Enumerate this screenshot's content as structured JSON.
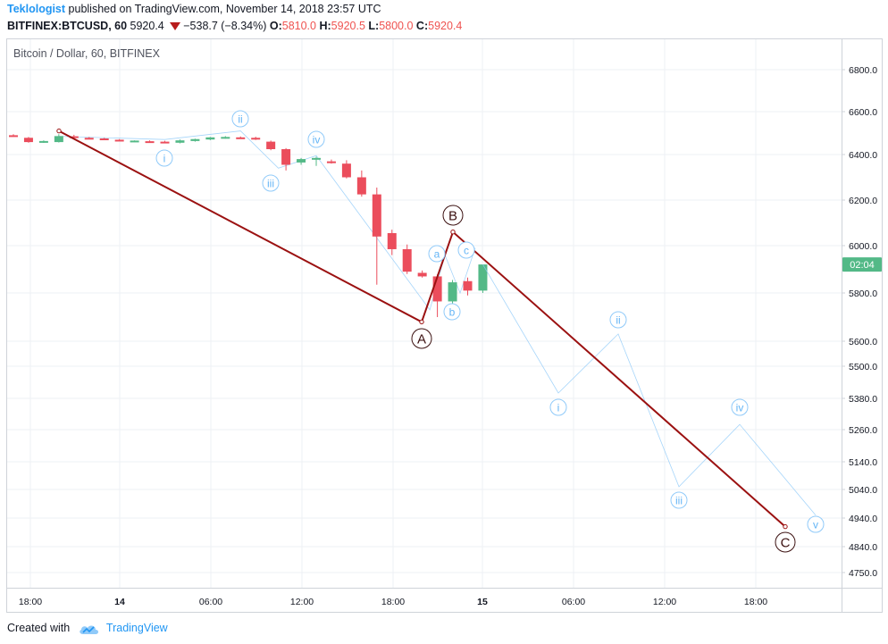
{
  "header": {
    "author": "Teklologist",
    "published_text": "published on TradingView.com, November 14, 2018 23:57 UTC",
    "symbol": "BITFINEX:BTCUSD, 60",
    "last": "5920.4",
    "change": "−538.7 (−8.34%)",
    "open_label": "O:",
    "open": "5810.0",
    "high_label": "H:",
    "high": "5920.5",
    "low_label": "L:",
    "low": "5800.0",
    "close_label": "C:",
    "close": "5920.4"
  },
  "chart_title": "Bitcoin / Dollar, 60, BITFINEX",
  "price_tag": "02:04",
  "footer": {
    "created_with": "Created with",
    "brand": "TradingView"
  },
  "colors": {
    "up": "#53b987",
    "down": "#eb4d5c",
    "main_wave": "#9b1111",
    "sub_wave": "#90caf9",
    "brand": "#2196f3"
  },
  "chart_data": {
    "type": "candlestick",
    "y_ticks": [
      "6800.0",
      "6600.0",
      "6400.0",
      "6200.0",
      "6000.0",
      "5800.0",
      "5600.0",
      "5500.0",
      "5380.0",
      "5260.0",
      "5140.0",
      "5040.0",
      "4940.0",
      "4840.0",
      "4750.0"
    ],
    "x_ticks": [
      "18:00",
      "14",
      "06:00",
      "12:00",
      "18:00",
      "15",
      "06:00",
      "12:00",
      "18:00"
    ],
    "candles": [
      {
        "o": 6490,
        "h": 6495,
        "l": 6485,
        "c": 6486
      },
      {
        "o": 6478,
        "h": 6482,
        "l": 6455,
        "c": 6458
      },
      {
        "o": 6460,
        "h": 6466,
        "l": 6454,
        "c": 6463
      },
      {
        "o": 6458,
        "h": 6495,
        "l": 6456,
        "c": 6486
      },
      {
        "o": 6485,
        "h": 6492,
        "l": 6478,
        "c": 6480
      },
      {
        "o": 6478,
        "h": 6482,
        "l": 6472,
        "c": 6475
      },
      {
        "o": 6475,
        "h": 6478,
        "l": 6470,
        "c": 6471
      },
      {
        "o": 6469,
        "h": 6472,
        "l": 6462,
        "c": 6464
      },
      {
        "o": 6462,
        "h": 6466,
        "l": 6458,
        "c": 6465
      },
      {
        "o": 6462,
        "h": 6466,
        "l": 6457,
        "c": 6460
      },
      {
        "o": 6460,
        "h": 6464,
        "l": 6454,
        "c": 6458
      },
      {
        "o": 6455,
        "h": 6470,
        "l": 6452,
        "c": 6466
      },
      {
        "o": 6463,
        "h": 6474,
        "l": 6460,
        "c": 6472
      },
      {
        "o": 6470,
        "h": 6482,
        "l": 6467,
        "c": 6480
      },
      {
        "o": 6478,
        "h": 6486,
        "l": 6474,
        "c": 6482
      },
      {
        "o": 6480,
        "h": 6484,
        "l": 6474,
        "c": 6476
      },
      {
        "o": 6478,
        "h": 6483,
        "l": 6468,
        "c": 6470
      },
      {
        "o": 6460,
        "h": 6465,
        "l": 6420,
        "c": 6425
      },
      {
        "o": 6425,
        "h": 6430,
        "l": 6330,
        "c": 6355
      },
      {
        "o": 6365,
        "h": 6385,
        "l": 6355,
        "c": 6380
      },
      {
        "o": 6380,
        "h": 6390,
        "l": 6350,
        "c": 6385
      },
      {
        "o": 6370,
        "h": 6378,
        "l": 6360,
        "c": 6365
      },
      {
        "o": 6360,
        "h": 6375,
        "l": 6295,
        "c": 6300
      },
      {
        "o": 6300,
        "h": 6330,
        "l": 6215,
        "c": 6225
      },
      {
        "o": 6225,
        "h": 6255,
        "l": 5835,
        "c": 6040
      },
      {
        "o": 6055,
        "h": 6070,
        "l": 5960,
        "c": 5985
      },
      {
        "o": 5985,
        "h": 6005,
        "l": 5880,
        "c": 5890
      },
      {
        "o": 5885,
        "h": 5895,
        "l": 5865,
        "c": 5870
      },
      {
        "o": 5870,
        "h": 5880,
        "l": 5700,
        "c": 5765
      },
      {
        "o": 5765,
        "h": 5855,
        "l": 5745,
        "c": 5845
      },
      {
        "o": 5850,
        "h": 5865,
        "l": 5790,
        "c": 5810
      },
      {
        "o": 5810,
        "h": 5920.5,
        "l": 5800,
        "c": 5920.4
      }
    ],
    "wave_main": [
      {
        "label": "",
        "price": 6510
      },
      {
        "label": "A",
        "price": 5680
      },
      {
        "label": "B",
        "price": 6060
      },
      {
        "label": "C",
        "price": 4910
      }
    ],
    "wave_sub_projection": [
      {
        "label": "i",
        "price": 5400
      },
      {
        "label": "ii",
        "price": 5630
      },
      {
        "label": "iii",
        "price": 5050
      },
      {
        "label": "iv",
        "price": 5280
      },
      {
        "label": "v",
        "price": 4950
      }
    ],
    "wave_sub_history": [
      {
        "label": "i",
        "price": 6470
      },
      {
        "label": "ii",
        "price": 6510
      },
      {
        "label": "iii",
        "price": 6340
      },
      {
        "label": "iv",
        "price": 6395
      },
      {
        "label": "a",
        "price": 5960
      },
      {
        "label": "b",
        "price": 5800
      },
      {
        "label": "c",
        "price": 5990
      }
    ]
  }
}
